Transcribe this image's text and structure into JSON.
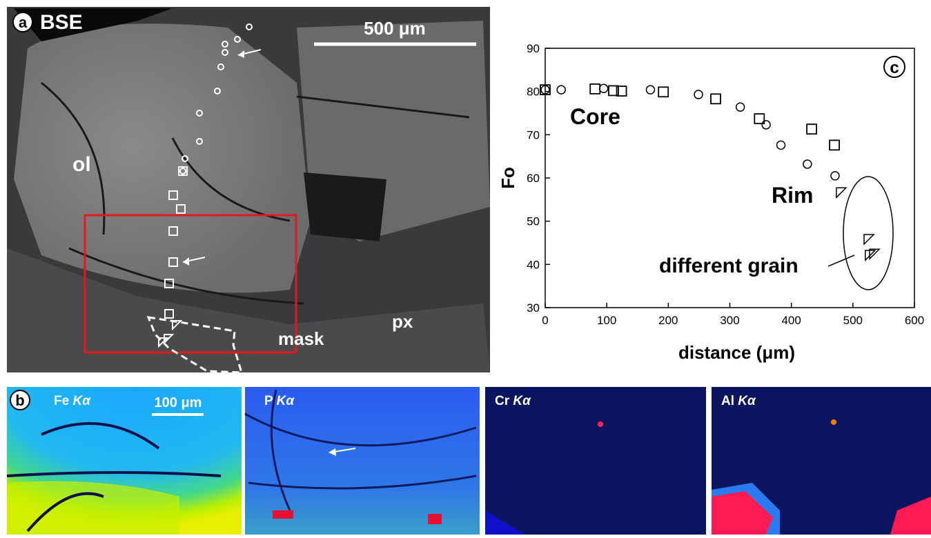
{
  "panel_a": {
    "panel_label": "a",
    "title": "BSE",
    "scale_bar": "500 μm",
    "labels": [
      "ol",
      "px",
      "mask"
    ]
  },
  "panel_b": {
    "panel_label": "b",
    "scale_bar": "100 μm",
    "maps": [
      {
        "element": "Fe",
        "line": "Kα"
      },
      {
        "element": "P",
        "line": "Kα"
      },
      {
        "element": "Cr",
        "line": "Kα"
      },
      {
        "element": "Al",
        "line": "Kα"
      }
    ]
  },
  "chart_data": {
    "type": "scatter",
    "panel_label": "c",
    "x_label": "distance (μm)",
    "y_label": "Fo",
    "annotations": [
      "Core",
      "Rim",
      "different grain"
    ],
    "xlim": [
      0,
      600
    ],
    "xticks": [
      0,
      100,
      200,
      300,
      400,
      500,
      600
    ],
    "ylim": [
      30,
      90
    ],
    "yticks": [
      30,
      40,
      50,
      60,
      70,
      80,
      90
    ],
    "series": [
      {
        "marker": "circle",
        "color": "#000000",
        "x": [
          0,
          26,
          95,
          171,
          249,
          317,
          359,
          383,
          426,
          471
        ],
        "values": [
          80.4,
          80.4,
          80.7,
          80.4,
          79.3,
          76.4,
          72.3,
          67.6,
          63.2,
          60.5
        ]
      },
      {
        "marker": "square",
        "color": "#000000",
        "x": [
          0,
          81,
          111,
          124,
          192,
          277,
          348,
          433,
          470
        ],
        "values": [
          80.4,
          80.6,
          80.2,
          80.1,
          79.9,
          78.3,
          73.7,
          71.3,
          67.6
        ]
      },
      {
        "marker": "triangle",
        "color": "#000000",
        "x": [
          481,
          526,
          528,
          535
        ],
        "values": [
          56.6,
          45.8,
          42.1,
          42.4
        ]
      }
    ]
  }
}
